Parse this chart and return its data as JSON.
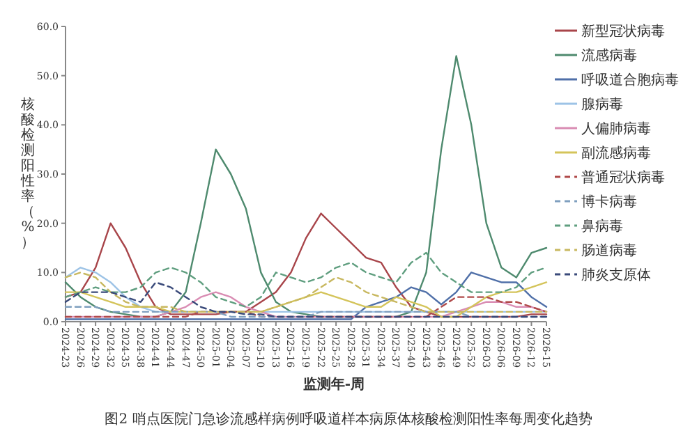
{
  "chart_data": {
    "type": "line",
    "ylabel": "核酸检测阳性率（%）",
    "xlabel": "监测年-周",
    "annotations": [
      "图2 哨点医院门急诊流感样病例呼吸道样本病原体核酸检测阳性率每周变化趋势"
    ],
    "categories": [
      "2024-23",
      "2024-26",
      "2024-29",
      "2024-32",
      "2024-35",
      "2024-38",
      "2024-41",
      "2024-44",
      "2024-47",
      "2024-50",
      "2025-01",
      "2025-04",
      "2025-07",
      "2025-10",
      "2025-13",
      "2025-16",
      "2025-19",
      "2025-22",
      "2025-25",
      "2025-28",
      "2025-31",
      "2025-34",
      "2025-37",
      "2025-40",
      "2025-43",
      "2025-46",
      "2025-49",
      "2025-52",
      "2026-03",
      "2026-06",
      "2026-09",
      "2026-12",
      "2026-15"
    ],
    "ylim": [
      0,
      60
    ],
    "yticks": [
      {
        "value": 0,
        "label": "0.0"
      },
      {
        "value": 10,
        "label": "10.0"
      },
      {
        "value": 20,
        "label": "20.0"
      },
      {
        "value": 30,
        "label": "30.0"
      },
      {
        "value": 40,
        "label": "40.0"
      },
      {
        "value": 50,
        "label": "50.0"
      },
      {
        "value": 60,
        "label": "60.0"
      }
    ],
    "grid": false,
    "legend": "right",
    "marker": "none",
    "series": [
      {
        "name": "新型冠状病毒",
        "color": "#a8454a",
        "line_style": "solid",
        "values": [
          5,
          6,
          11,
          20,
          15,
          8,
          3,
          1.5,
          1.5,
          1.5,
          1.5,
          2,
          2,
          4,
          6,
          10,
          17,
          22,
          19,
          16,
          13,
          12,
          7,
          3,
          2,
          1,
          1,
          1,
          1,
          1,
          1,
          1.5,
          1.5
        ]
      },
      {
        "name": "流感病毒",
        "color": "#4e8a6e",
        "line_style": "solid",
        "values": [
          8,
          5,
          3,
          2,
          1.5,
          1,
          1,
          2,
          6,
          20,
          35,
          30,
          23,
          10,
          4,
          2,
          1.5,
          1,
          1,
          1,
          1,
          1,
          1,
          2,
          10,
          35,
          54,
          40,
          20,
          11,
          9,
          14,
          15
        ]
      },
      {
        "name": "呼吸道合胞病毒",
        "color": "#4f6fa8",
        "line_style": "solid",
        "values": [
          0.5,
          0.5,
          0.5,
          0.5,
          0.5,
          0.5,
          0.5,
          0.5,
          0.5,
          0.5,
          0.5,
          0.5,
          0.5,
          0.5,
          0.5,
          0.5,
          0.5,
          0.5,
          0.5,
          0.5,
          3,
          4,
          5,
          7,
          6,
          3.5,
          6,
          10,
          9,
          8,
          8,
          5,
          3
        ]
      },
      {
        "name": "腺病毒",
        "color": "#9dc3e6",
        "line_style": "solid",
        "values": [
          9,
          11,
          10,
          8,
          5,
          3,
          2,
          2,
          2,
          2,
          2,
          2,
          2,
          2,
          2,
          2,
          2,
          2,
          2,
          2,
          2,
          2,
          2,
          2,
          2,
          2,
          2,
          2,
          2,
          2,
          2,
          2,
          2
        ]
      },
      {
        "name": "人偏肺病毒",
        "color": "#d98cb3",
        "line_style": "solid",
        "values": [
          1,
          1,
          1,
          1,
          1,
          1,
          1,
          2,
          3,
          5,
          6,
          5,
          3,
          2,
          1,
          1,
          1,
          1,
          1,
          1,
          1,
          1,
          1,
          1,
          1,
          1,
          2,
          3,
          4,
          4,
          3,
          3,
          2
        ]
      },
      {
        "name": "副流感病毒",
        "color": "#d4c45a",
        "line_style": "solid",
        "values": [
          6,
          6,
          5,
          4,
          3,
          3,
          3,
          2,
          2,
          2,
          2,
          2,
          2,
          2,
          3,
          4,
          5,
          6,
          5,
          4,
          3,
          3,
          5,
          4,
          3,
          1,
          1,
          3,
          5,
          6,
          6,
          7,
          8
        ]
      },
      {
        "name": "普通冠状病毒",
        "color": "#b04a4a",
        "line_style": "dashed",
        "values": [
          1,
          1,
          1,
          1,
          1,
          1,
          1,
          1,
          1,
          2,
          2,
          2,
          2,
          1,
          1,
          1,
          1,
          1,
          1,
          1,
          1,
          1,
          1,
          1,
          1,
          3,
          5,
          5,
          5,
          4,
          4,
          3,
          2
        ]
      },
      {
        "name": "博卡病毒",
        "color": "#7f9fbf",
        "line_style": "dashed",
        "values": [
          3,
          3,
          3,
          2,
          2,
          2,
          2,
          2,
          2,
          2,
          2,
          1,
          1,
          1,
          1,
          1,
          1,
          2,
          2,
          2,
          2,
          2,
          2,
          2,
          2,
          2,
          2,
          1,
          1,
          1,
          1,
          1,
          1
        ]
      },
      {
        "name": "鼻病毒",
        "color": "#5f9e7f",
        "line_style": "dashed",
        "values": [
          5,
          6,
          7,
          6,
          6,
          7,
          10,
          11,
          10,
          8,
          5,
          4,
          3,
          5,
          10,
          9,
          8,
          9,
          11,
          12,
          10,
          9,
          8,
          12,
          14,
          10,
          8,
          6,
          6,
          6,
          7,
          10,
          11
        ]
      },
      {
        "name": "肠道病毒",
        "color": "#c8b860",
        "line_style": "dashed",
        "values": [
          9,
          10,
          9,
          6,
          4,
          3,
          3,
          3,
          2,
          2,
          2,
          2,
          2,
          2,
          3,
          4,
          5,
          7,
          9,
          8,
          6,
          5,
          4,
          3,
          2,
          2,
          2,
          2,
          2,
          2,
          2,
          2,
          2
        ]
      },
      {
        "name": "肺炎支原体",
        "color": "#3a4a7a",
        "line_style": "dashed",
        "values": [
          4,
          6,
          6,
          6,
          5,
          4,
          8,
          7,
          5,
          3,
          2,
          2,
          1.5,
          1.5,
          1,
          1,
          1,
          1,
          1,
          1,
          1,
          1,
          1,
          1,
          1,
          1,
          1,
          1,
          1,
          1,
          1,
          1,
          1
        ]
      }
    ]
  }
}
